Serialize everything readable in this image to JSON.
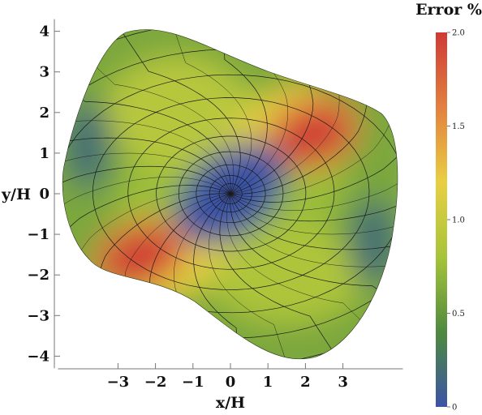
{
  "chart_data": {
    "type": "heatmap",
    "title": "",
    "xlabel": "x/H",
    "ylabel": "y/H",
    "xlim": [
      -4.6,
      4.6
    ],
    "ylim": [
      -4.3,
      4.3
    ],
    "x_ticks": [
      -3,
      -2,
      -1,
      0,
      1,
      2,
      3
    ],
    "x_tick_labels": [
      "−3",
      "−2",
      "−1",
      "0",
      "1",
      "2",
      "3"
    ],
    "y_ticks": [
      4,
      3,
      2,
      1,
      0,
      -1,
      -2,
      -3,
      -4
    ],
    "y_tick_labels": [
      "4",
      "3",
      "2",
      "1",
      "0",
      "−1",
      "−2",
      "−3",
      "−4"
    ],
    "colorbar": {
      "title": "Error %",
      "min": 0,
      "max": 2.0,
      "ticks": [
        0,
        0.5,
        1.0,
        1.5,
        2.0
      ],
      "tick_labels": [
        "0",
        "0.5",
        "1.0",
        "1.5",
        "2.0"
      ],
      "colors": [
        "#3b53a6",
        "#4f8a3e",
        "#a6c43a",
        "#e9cf42",
        "#e28040",
        "#cf3a35"
      ]
    },
    "mesh": {
      "center": [
        0,
        0
      ],
      "radial_lines": 16,
      "ring_count": 11
    },
    "hotspots": [
      {
        "x": 2.2,
        "y": 1.45,
        "value": 2.0
      },
      {
        "x": -2.4,
        "y": -1.55,
        "value": 2.0
      }
    ],
    "cold_regions": [
      {
        "x": 0,
        "y": 0,
        "value": 0.0
      },
      {
        "x": -3.8,
        "y": 1.2,
        "value": 0.2
      },
      {
        "x": 3.8,
        "y": -1.2,
        "value": 0.2
      }
    ]
  }
}
